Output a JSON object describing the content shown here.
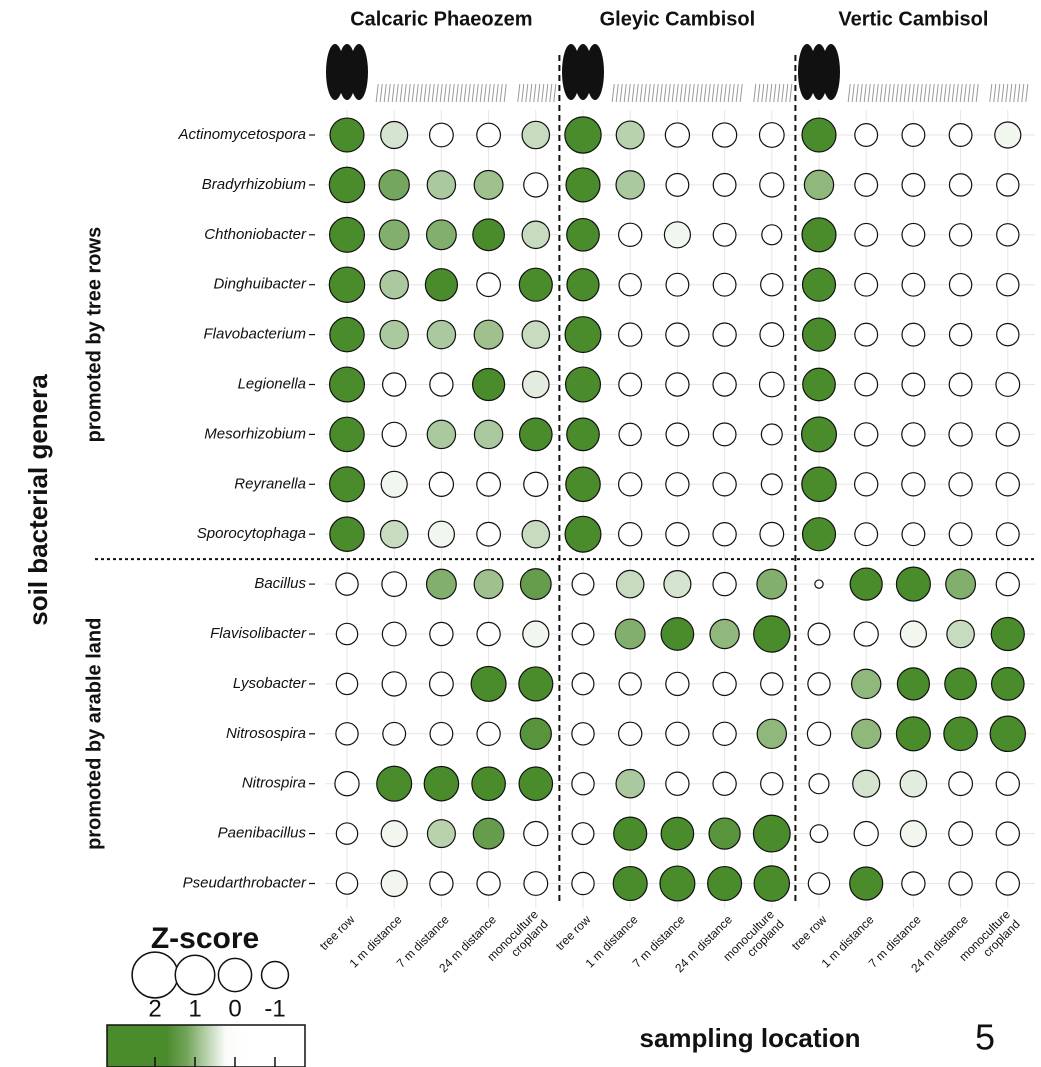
{
  "chart_data": {
    "type": "bubble",
    "groups": [
      "Calcaric Phaeozem",
      "Gleyic Cambisol",
      "Vertic Cambisol"
    ],
    "categories": [
      "tree row",
      "1 m distance",
      "7 m distance",
      "24 m distance",
      "monoculture cropland"
    ],
    "y_label": "soil bacterial genera",
    "x_label": "sampling location",
    "color_low": "#ffffff",
    "color_high": "#4a8b2c",
    "grid": true,
    "row_groups": [
      {
        "name": "promoted by tree rows",
        "series": [
          {
            "name": "Actinomycetospora",
            "values": [
              2.0,
              0.5,
              -0.2,
              -0.2,
              0.6,
              2.5,
              0.7,
              -0.1,
              -0.1,
              0.0,
              2.0,
              -0.4,
              -0.4,
              -0.4,
              0.3
            ]
          },
          {
            "name": "Bradyrhizobium",
            "values": [
              2.3,
              1.2,
              0.8,
              0.9,
              -0.1,
              2.0,
              0.8,
              -0.4,
              -0.4,
              -0.1,
              1.0,
              -0.4,
              -0.4,
              -0.5,
              -0.5
            ]
          },
          {
            "name": "Chthoniobacter",
            "values": [
              2.2,
              1.1,
              1.1,
              1.5,
              0.6,
              1.7,
              -0.3,
              0.3,
              -0.4,
              -1.0,
              2.0,
              -0.4,
              -0.4,
              -0.5,
              -0.5
            ]
          },
          {
            "name": "Dinghuibacter",
            "values": [
              2.3,
              0.8,
              1.6,
              -0.2,
              1.8,
              1.6,
              -0.5,
              -0.4,
              -0.4,
              -0.5,
              1.8,
              -0.4,
              -0.4,
              -0.5,
              -0.5
            ]
          },
          {
            "name": "Flavobacterium",
            "values": [
              2.1,
              0.8,
              0.8,
              0.9,
              0.6,
              2.4,
              -0.3,
              -0.3,
              -0.3,
              -0.2,
              1.8,
              -0.4,
              -0.4,
              -0.5,
              -0.5
            ]
          },
          {
            "name": "Legionella",
            "values": [
              2.2,
              -0.3,
              -0.3,
              1.6,
              0.4,
              2.2,
              -0.4,
              -0.3,
              -0.3,
              0.0,
              1.7,
              -0.4,
              -0.4,
              -0.4,
              -0.2
            ]
          },
          {
            "name": "Mesorhizobium",
            "values": [
              2.1,
              -0.1,
              0.8,
              0.8,
              1.7,
              1.7,
              -0.5,
              -0.4,
              -0.4,
              -0.8,
              2.2,
              -0.3,
              -0.3,
              -0.3,
              -0.3
            ]
          },
          {
            "name": "Reyranella",
            "values": [
              2.2,
              0.3,
              -0.1,
              -0.2,
              -0.1,
              2.1,
              -0.3,
              -0.3,
              -0.3,
              -0.8,
              2.1,
              -0.3,
              -0.3,
              -0.3,
              -0.3
            ]
          },
          {
            "name": "Sporocytophaga",
            "values": [
              2.1,
              0.6,
              0.3,
              -0.2,
              0.6,
              2.4,
              -0.3,
              -0.3,
              -0.3,
              -0.2,
              1.8,
              -0.4,
              -0.4,
              -0.4,
              -0.4
            ]
          }
        ]
      },
      {
        "name": "promoted by arable land",
        "series": [
          {
            "name": "Bacillus",
            "values": [
              -0.5,
              0.0,
              1.1,
              0.9,
              1.3,
              -0.6,
              0.6,
              0.5,
              -0.3,
              1.1,
              -3.5,
              1.6,
              2.0,
              1.1,
              -0.3
            ]
          },
          {
            "name": "Flavisolibacter",
            "values": [
              -0.7,
              -0.2,
              -0.3,
              -0.3,
              0.3,
              -0.6,
              1.1,
              1.7,
              1.0,
              2.5,
              -0.6,
              -0.1,
              0.3,
              0.6,
              1.8
            ]
          },
          {
            "name": "Lysobacter",
            "values": [
              -0.7,
              -0.1,
              -0.2,
              2.2,
              2.0,
              -0.6,
              -0.5,
              -0.3,
              -0.3,
              -0.5,
              -0.5,
              1.0,
              1.6,
              1.5,
              1.7
            ]
          },
          {
            "name": "Nitrosospira",
            "values": [
              -0.5,
              -0.4,
              -0.4,
              -0.3,
              1.4,
              -0.5,
              -0.3,
              -0.3,
              -0.3,
              1.0,
              -0.3,
              1.0,
              2.0,
              1.9,
              2.3
            ]
          },
          {
            "name": "Nitrospira",
            "values": [
              -0.1,
              2.2,
              2.1,
              1.9,
              1.9,
              -0.5,
              0.8,
              -0.3,
              -0.3,
              -0.5,
              -1.0,
              0.5,
              0.4,
              -0.2,
              -0.3
            ]
          },
          {
            "name": "Paenibacillus",
            "values": [
              -0.7,
              0.3,
              0.7,
              1.3,
              -0.1,
              -0.6,
              1.8,
              1.7,
              1.4,
              2.6,
              -1.5,
              -0.1,
              0.3,
              -0.2,
              -0.3
            ]
          },
          {
            "name": "Pseudarthrobacter",
            "values": [
              -0.7,
              0.3,
              -0.3,
              -0.3,
              -0.2,
              -0.5,
              2.0,
              2.2,
              2.0,
              2.3,
              -0.7,
              1.8,
              -0.3,
              -0.3,
              -0.3
            ]
          }
        ]
      }
    ],
    "legend": {
      "title": "Z-score",
      "ticks": [
        2,
        1,
        0,
        -1
      ]
    },
    "annotation": "5"
  }
}
